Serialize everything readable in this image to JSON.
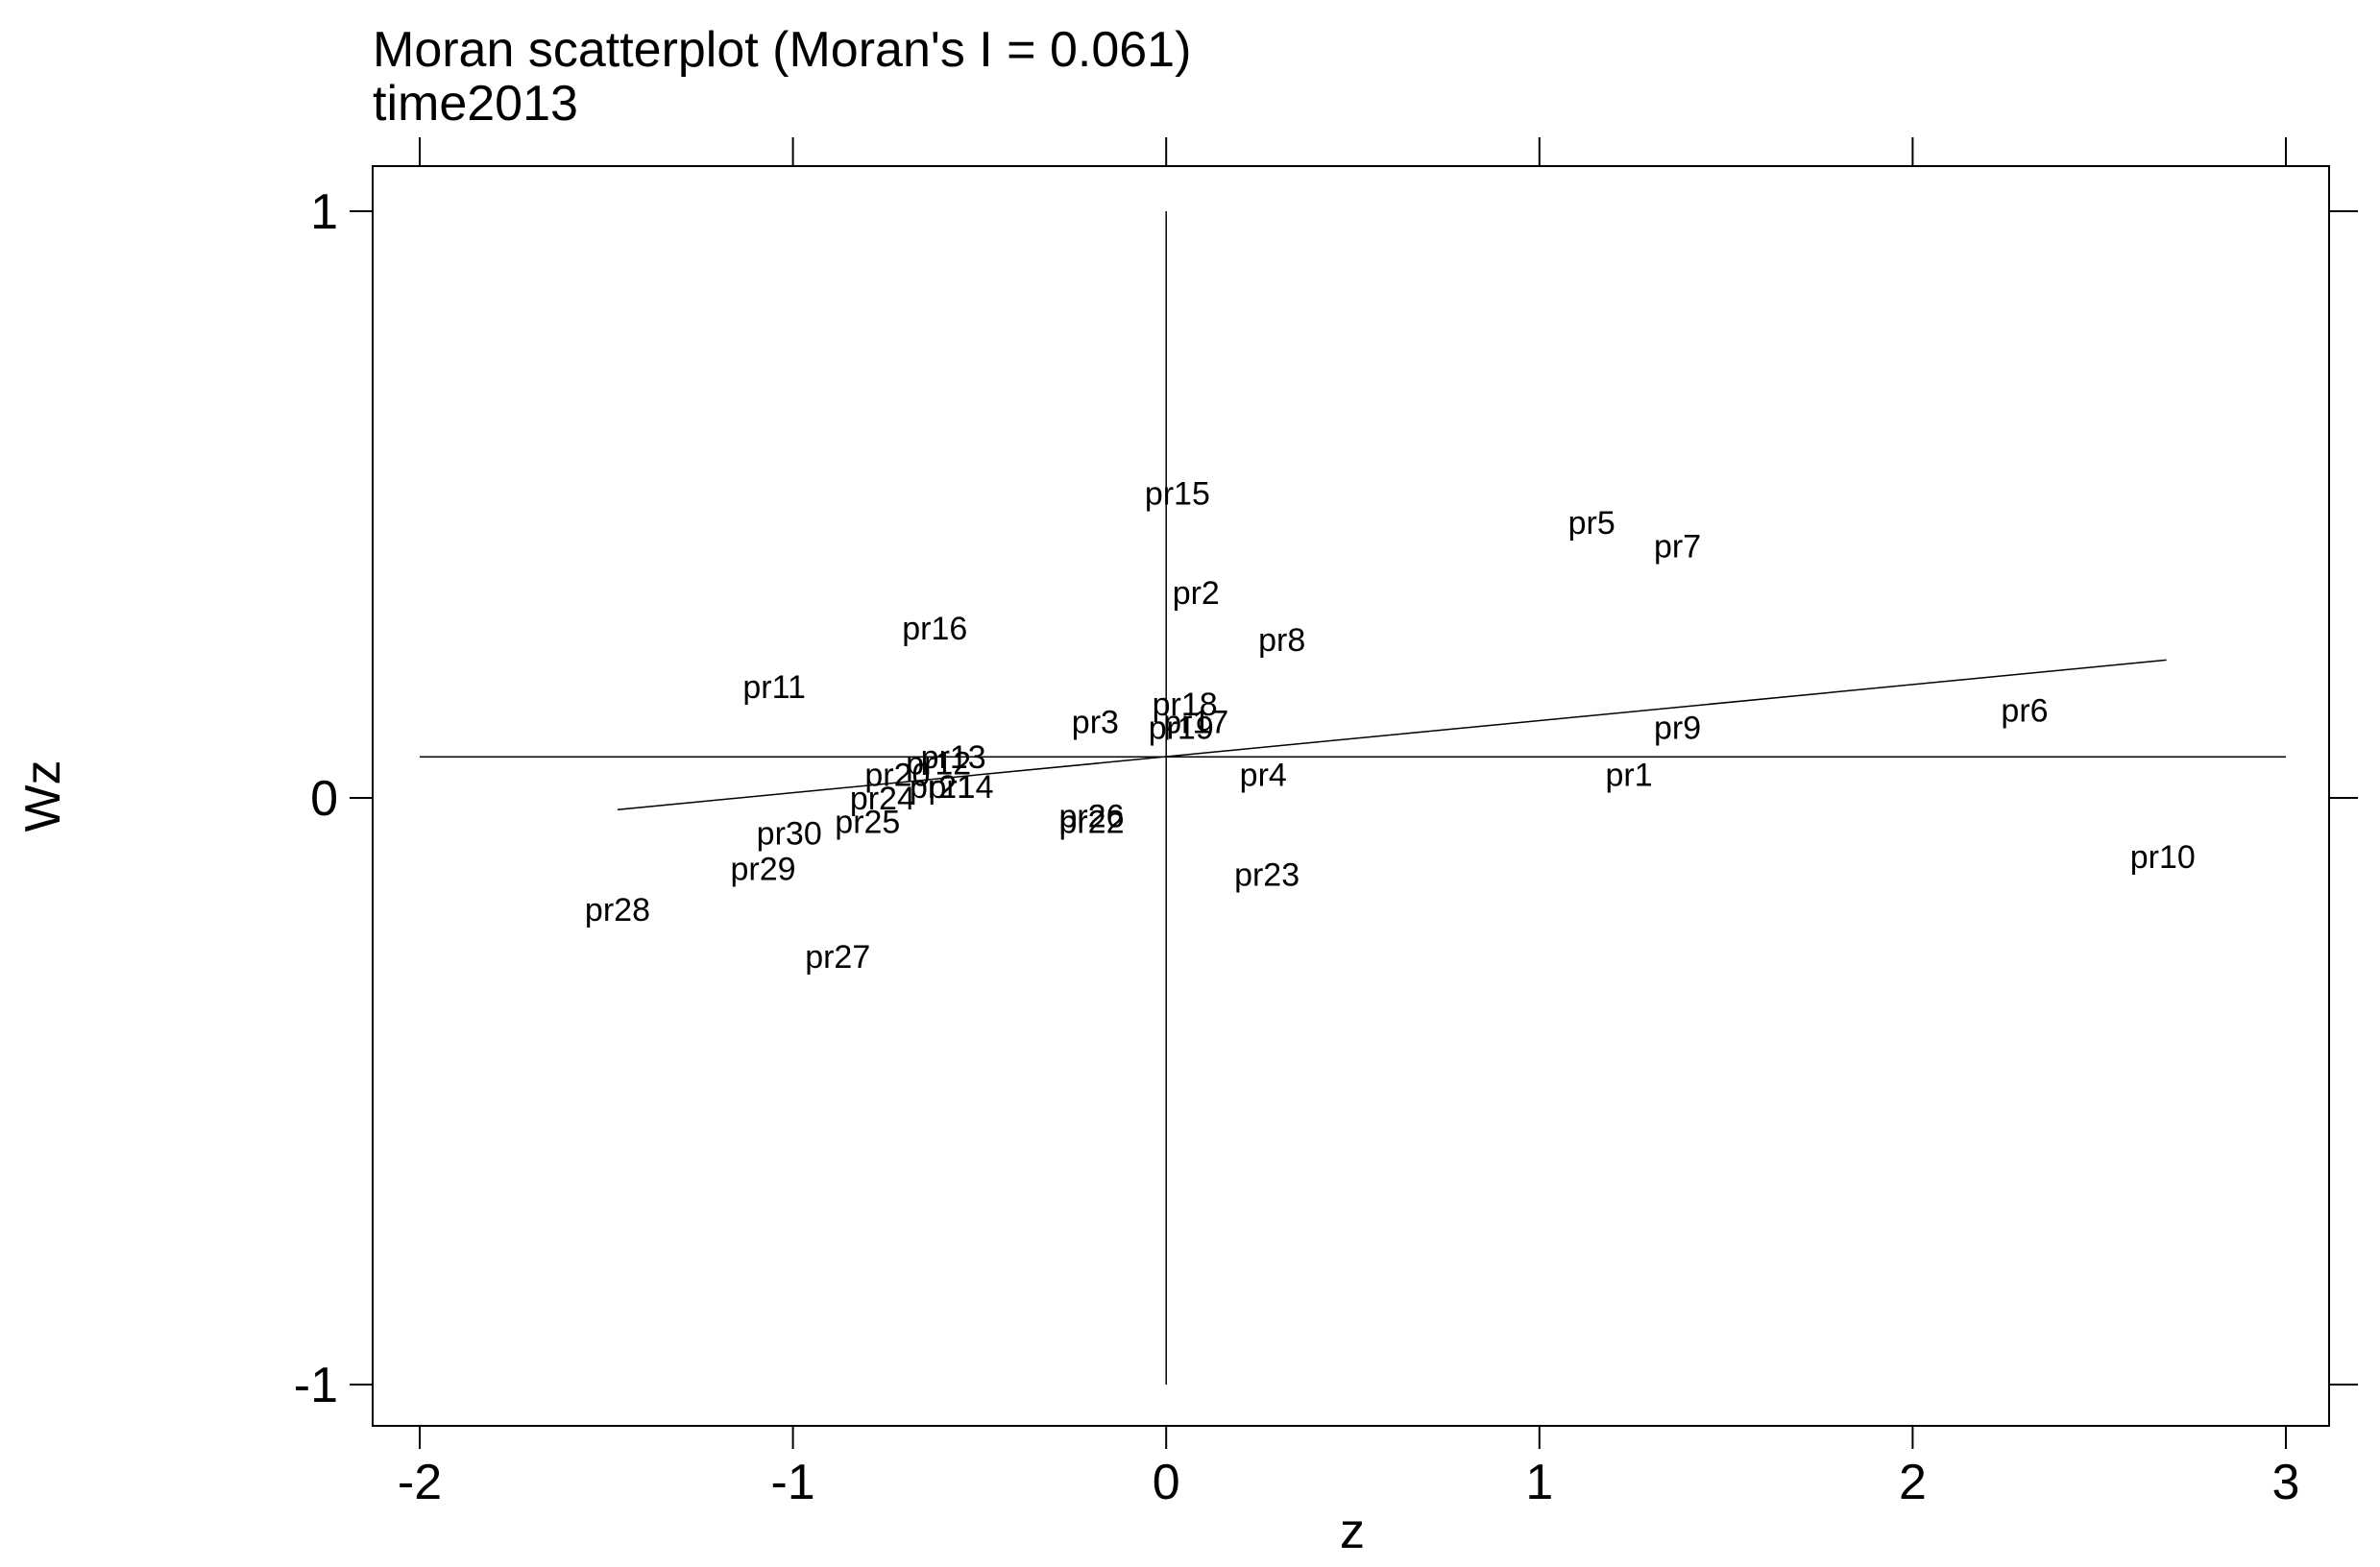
{
  "chart_data": {
    "type": "scatter",
    "title": "Moran scatterplot (Moran's I = 0.061)",
    "subtitle": "time2013",
    "xlabel": "z",
    "ylabel": "Wz",
    "xlim": [
      -2,
      3
    ],
    "ylim": [
      -1,
      1
    ],
    "x_ticks": [
      "-2",
      "-1",
      "0",
      "1",
      "2",
      "3"
    ],
    "y_ticks": [
      "-1",
      "0",
      "1"
    ],
    "x_tick_values": [
      -2,
      -1,
      0,
      1,
      2,
      3
    ],
    "y_tick_values": [
      -1,
      0,
      1
    ],
    "grid": false,
    "mean_lines": {
      "x": 0,
      "y": 0.07
    },
    "regression_line": {
      "x": [
        -1.47,
        2.68
      ],
      "y": [
        -0.02,
        0.235
      ]
    },
    "points": [
      {
        "label": "pr1",
        "x": 1.24,
        "y": 0.04
      },
      {
        "label": "pr2",
        "x": 0.08,
        "y": 0.35
      },
      {
        "label": "pr3",
        "x": -0.19,
        "y": 0.13
      },
      {
        "label": "pr4",
        "x": 0.26,
        "y": 0.04
      },
      {
        "label": "pr5",
        "x": 1.14,
        "y": 0.47
      },
      {
        "label": "pr6",
        "x": 2.3,
        "y": 0.15
      },
      {
        "label": "pr7",
        "x": 1.37,
        "y": 0.43
      },
      {
        "label": "pr8",
        "x": 0.31,
        "y": 0.27
      },
      {
        "label": "pr9",
        "x": 1.37,
        "y": 0.12
      },
      {
        "label": "pr10",
        "x": 2.67,
        "y": -0.1
      },
      {
        "label": "pr11",
        "x": -1.05,
        "y": 0.19
      },
      {
        "label": "pr12",
        "x": -0.61,
        "y": 0.06
      },
      {
        "label": "pr13",
        "x": -0.57,
        "y": 0.07
      },
      {
        "label": "pr14",
        "x": -0.55,
        "y": 0.02
      },
      {
        "label": "pr15",
        "x": 0.03,
        "y": 0.52
      },
      {
        "label": "pr16",
        "x": -0.62,
        "y": 0.29
      },
      {
        "label": "pr17",
        "x": 0.08,
        "y": 0.13
      },
      {
        "label": "pr18",
        "x": 0.05,
        "y": 0.16
      },
      {
        "label": "pr19",
        "x": 0.04,
        "y": 0.12
      },
      {
        "label": "pr20",
        "x": -0.72,
        "y": 0.04
      },
      {
        "label": "pr21",
        "x": -0.6,
        "y": 0.02
      },
      {
        "label": "pr22",
        "x": -0.2,
        "y": -0.04
      },
      {
        "label": "pr23",
        "x": 0.27,
        "y": -0.13
      },
      {
        "label": "pr24",
        "x": -0.76,
        "y": 0.0
      },
      {
        "label": "pr25",
        "x": -0.8,
        "y": -0.04
      },
      {
        "label": "pr26",
        "x": -0.2,
        "y": -0.03
      },
      {
        "label": "pr27",
        "x": -0.88,
        "y": -0.27
      },
      {
        "label": "pr28",
        "x": -1.47,
        "y": -0.19
      },
      {
        "label": "pr29",
        "x": -1.08,
        "y": -0.12
      },
      {
        "label": "pr30",
        "x": -1.01,
        "y": -0.06
      }
    ]
  }
}
